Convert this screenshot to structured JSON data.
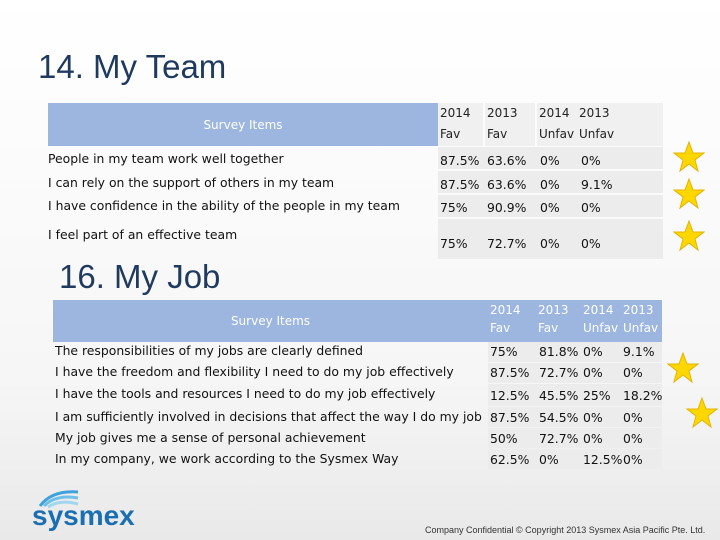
{
  "team": {
    "title": "14. My Team",
    "header_label": "Survey Items",
    "col_headers": [
      {
        "l1": "2014",
        "l2": "Fav"
      },
      {
        "l1": "2013",
        "l2": "Fav"
      },
      {
        "l1": "2014",
        "l2": "Unfav"
      },
      {
        "l1": "2013",
        "l2": "Unfav"
      }
    ],
    "rows": [
      {
        "item": "People in my team work well together",
        "v": [
          "87.5%",
          "63.6%",
          "0%",
          "0%"
        ]
      },
      {
        "item": "I can rely on the support of others in my team",
        "v": [
          "87.5%",
          "63.6%",
          "0%",
          "9.1%"
        ]
      },
      {
        "item": "I have confidence in the ability of the people in my team",
        "v": [
          "75%",
          "90.9%",
          "0%",
          "0%"
        ]
      },
      {
        "item": "I feel part of an effective team",
        "v": [
          "75%",
          "72.7%",
          "0%",
          "0%"
        ]
      }
    ]
  },
  "job": {
    "title": "16. My Job",
    "header_label": "Survey Items",
    "col_headers": [
      {
        "l1": "2014",
        "l2": "Fav"
      },
      {
        "l1": "2013",
        "l2": "Fav"
      },
      {
        "l1": "2014",
        "l2": "Unfav"
      },
      {
        "l1": "2013",
        "l2": "Unfav"
      }
    ],
    "rows": [
      {
        "item": "The responsibilities of my jobs are clearly defined",
        "v": [
          "75%",
          "81.8%",
          "0%",
          "9.1%"
        ]
      },
      {
        "item": "I have the freedom and flexibility I need to do my job effectively",
        "v": [
          "87.5%",
          "72.7%",
          "0%",
          "0%"
        ]
      },
      {
        "item": "I have the tools and resources I need to do my job effectively",
        "v": [
          "12.5%",
          "45.5%",
          "25%",
          "18.2%"
        ]
      },
      {
        "item": "I am sufficiently involved in decisions that affect the way I do my job",
        "v": [
          "87.5%",
          "54.5%",
          "0%",
          "0%"
        ]
      },
      {
        "item": "My job gives me a sense of personal achievement",
        "v": [
          "50%",
          "72.7%",
          "0%",
          "0%"
        ]
      },
      {
        "item": "In my company, we work according to the Sysmex Way",
        "v": [
          "62.5%",
          "0%",
          "12.5%",
          "0%"
        ]
      }
    ]
  },
  "footer": {
    "logo_text": "sysmex",
    "copyright": "Company Confidential © Copyright 2013 Sysmex Asia Pacific Pte. Ltd."
  },
  "colors": {
    "header_blue": "#9cb6e0",
    "title": "#1f3a5f",
    "star": "#ffd700",
    "logo": "#1a6fb3"
  },
  "icons": [
    "star-icon",
    "sysmex-logo-icon"
  ]
}
